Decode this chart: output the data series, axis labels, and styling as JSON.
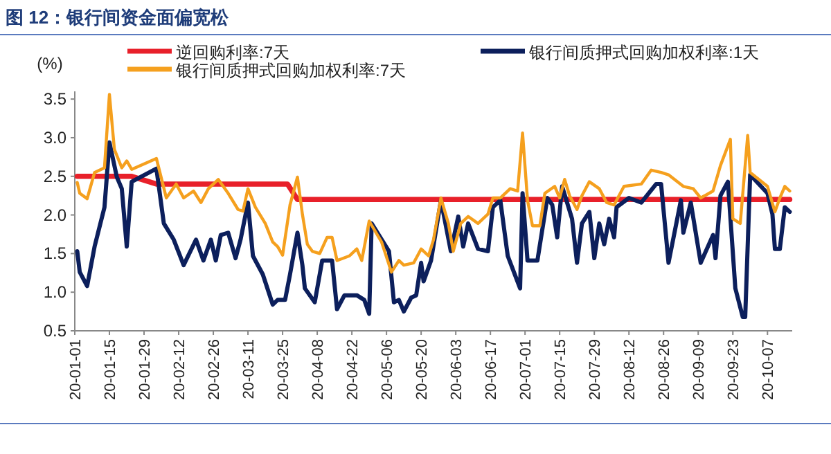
{
  "chart_data": {
    "type": "line",
    "title": "图 12：银行间资金面偏宽松",
    "ylabel": "(%)",
    "xlim": [
      "--01-01",
      "--10-17"
    ],
    "ylim": [
      0.5,
      3.6
    ],
    "xticks": [
      {
        "value": "--01-01",
        "label": "20-01-01"
      },
      {
        "value": "--01-15",
        "label": "20-01-15"
      },
      {
        "value": "--01-29",
        "label": "20-01-29"
      },
      {
        "value": "--02-12",
        "label": "20-02-12"
      },
      {
        "value": "--02-26",
        "label": "20-02-26"
      },
      {
        "value": "--03-11",
        "label": "20-03-11"
      },
      {
        "value": "--03-25",
        "label": "20-03-25"
      },
      {
        "value": "--04-08",
        "label": "20-04-08"
      },
      {
        "value": "--04-22",
        "label": "20-04-22"
      },
      {
        "value": "--05-06",
        "label": "20-05-06"
      },
      {
        "value": "--05-20",
        "label": "20-05-20"
      },
      {
        "value": "--06-03",
        "label": "20-06-03"
      },
      {
        "value": "--06-17",
        "label": "20-06-17"
      },
      {
        "value": "--07-01",
        "label": "20-07-01"
      },
      {
        "value": "--07-15",
        "label": "20-07-15"
      },
      {
        "value": "--07-29",
        "label": "20-07-29"
      },
      {
        "value": "--08-12",
        "label": "20-08-12"
      },
      {
        "value": "--08-26",
        "label": "20-08-26"
      },
      {
        "value": "--09-09",
        "label": "20-09-09"
      },
      {
        "value": "--09-23",
        "label": "20-09-23"
      },
      {
        "value": "--10-07",
        "label": "20-10-07"
      }
    ],
    "yticks": [
      {
        "value": 0.5,
        "label": "0.5"
      },
      {
        "value": 1.0,
        "label": "1.0"
      },
      {
        "value": 1.5,
        "label": "1.5"
      },
      {
        "value": 2.0,
        "label": "2.0"
      },
      {
        "value": 2.5,
        "label": "2.5"
      },
      {
        "value": 3.0,
        "label": "3.0"
      },
      {
        "value": 3.5,
        "label": "3.5"
      }
    ],
    "legend": "top",
    "series": [
      {
        "name": "逆回购利率:7天",
        "color": "#e8202a",
        "x": [
          "--01-02",
          "--01-24",
          "--02-03",
          "--03-27",
          "--03-31",
          "--10-16"
        ],
        "values": [
          2.5,
          2.5,
          2.4,
          2.4,
          2.2,
          2.2
        ]
      },
      {
        "name": "银行间质押式回购加权利率:1天",
        "color": "#0c1f5c",
        "x": [
          "--01-02",
          "--01-03",
          "--01-06",
          "--01-09",
          "--01-13",
          "--01-15",
          "--01-18",
          "--01-20",
          "--01-22",
          "--01-24",
          "--02-03",
          "--02-06",
          "--02-10",
          "--02-14",
          "--02-19",
          "--02-22",
          "--02-25",
          "--02-27",
          "--02-29",
          "--03-03",
          "--03-06",
          "--03-08",
          "--03-11",
          "--03-13",
          "--03-17",
          "--03-21",
          "--03-23",
          "--03-26",
          "--03-28",
          "--03-31",
          "--04-02",
          "--04-03",
          "--04-07",
          "--04-10",
          "--04-14",
          "--04-16",
          "--04-19",
          "--04-24",
          "--04-27",
          "--04-29",
          "--04-30",
          "--05-07",
          "--05-09",
          "--05-11",
          "--05-13",
          "--05-16",
          "--05-18",
          "--05-20",
          "--05-21",
          "--05-24",
          "--05-28",
          "--06-01",
          "--06-04",
          "--06-06",
          "--06-08",
          "--06-12",
          "--06-16",
          "--06-18",
          "--06-21",
          "--06-24",
          "--06-29",
          "--06-30",
          "--07-02",
          "--07-06",
          "--07-10",
          "--07-12",
          "--07-14",
          "--07-16",
          "--07-20",
          "--07-22",
          "--07-24",
          "--07-27",
          "--07-29",
          "--07-31",
          "--08-02",
          "--08-04",
          "--08-06",
          "--08-07",
          "--08-12",
          "--08-17",
          "--08-23",
          "--08-25",
          "--08-28",
          "--09-02",
          "--09-03",
          "--09-06",
          "--09-10",
          "--09-15",
          "--09-16",
          "--09-18",
          "--09-21",
          "--09-24",
          "--09-27",
          "--09-28",
          "--09-30",
          "--10-07",
          "--10-09",
          "--10-10",
          "--10-12",
          "--10-14",
          "--10-16"
        ],
        "values": [
          1.53,
          1.26,
          1.08,
          1.59,
          2.1,
          2.94,
          2.49,
          2.34,
          1.59,
          2.43,
          2.6,
          1.89,
          1.68,
          1.35,
          1.68,
          1.41,
          1.68,
          1.41,
          1.74,
          1.77,
          1.44,
          1.68,
          2.16,
          1.47,
          1.23,
          0.84,
          0.9,
          0.9,
          1.23,
          1.77,
          1.35,
          1.05,
          0.87,
          1.41,
          1.41,
          0.78,
          0.96,
          0.96,
          0.9,
          0.72,
          1.89,
          1.53,
          0.87,
          0.9,
          0.75,
          0.93,
          0.96,
          1.38,
          1.14,
          1.41,
          2.19,
          1.53,
          1.98,
          1.59,
          1.89,
          1.56,
          1.53,
          2.1,
          2.19,
          1.47,
          1.05,
          2.28,
          1.41,
          1.41,
          2.22,
          2.13,
          1.71,
          2.37,
          1.95,
          1.38,
          1.89,
          2.04,
          1.44,
          1.89,
          1.62,
          1.95,
          1.71,
          2.1,
          2.22,
          2.16,
          2.4,
          2.4,
          1.38,
          2.19,
          1.77,
          2.16,
          1.38,
          1.74,
          1.44,
          2.25,
          2.43,
          1.05,
          0.68,
          0.68,
          2.52,
          2.28,
          2.01,
          1.56,
          1.56,
          2.1,
          2.04
        ]
      },
      {
        "name": "银行间质押式回购加权利率:7天",
        "color": "#f5a01e",
        "x": [
          "--01-02",
          "--01-03",
          "--01-06",
          "--01-09",
          "--01-13",
          "--01-15",
          "--01-17",
          "--01-20",
          "--01-22",
          "--01-24",
          "--02-03",
          "--02-07",
          "--02-11",
          "--02-14",
          "--02-18",
          "--02-21",
          "--02-24",
          "--02-28",
          "--03-03",
          "--03-07",
          "--03-09",
          "--03-11",
          "--03-14",
          "--03-18",
          "--03-21",
          "--03-23",
          "--03-25",
          "--03-28",
          "--03-31",
          "--04-02",
          "--04-04",
          "--04-06",
          "--04-09",
          "--04-12",
          "--04-14",
          "--04-16",
          "--04-21",
          "--04-24",
          "--04-26",
          "--04-29",
          "--05-04",
          "--05-08",
          "--05-11",
          "--05-13",
          "--05-17",
          "--05-20",
          "--05-23",
          "--05-25",
          "--05-28",
          "--05-31",
          "--06-02",
          "--06-05",
          "--06-08",
          "--06-12",
          "--06-16",
          "--06-18",
          "--06-21",
          "--06-25",
          "--06-28",
          "--06-30",
          "--07-02",
          "--07-04",
          "--07-07",
          "--07-09",
          "--07-13",
          "--07-15",
          "--07-17",
          "--07-19",
          "--07-22",
          "--07-24",
          "--07-27",
          "--07-31",
          "--08-03",
          "--08-06",
          "--08-10",
          "--08-17",
          "--08-21",
          "--08-25",
          "--08-28",
          "--09-03",
          "--09-07",
          "--09-10",
          "--09-15",
          "--09-18",
          "--09-22",
          "--09-23",
          "--09-26",
          "--09-29",
          "--09-30",
          "--10-07",
          "--10-10",
          "--10-12",
          "--10-14",
          "--10-16"
        ],
        "values": [
          2.42,
          2.28,
          2.21,
          2.55,
          2.61,
          3.56,
          2.85,
          2.61,
          2.7,
          2.59,
          2.73,
          2.22,
          2.4,
          2.22,
          2.31,
          2.16,
          2.34,
          2.46,
          2.28,
          2.07,
          2.05,
          2.34,
          2.1,
          1.89,
          1.65,
          1.59,
          1.48,
          2.13,
          2.49,
          2.01,
          1.62,
          1.53,
          1.5,
          1.71,
          1.71,
          1.41,
          1.47,
          1.56,
          1.41,
          1.92,
          1.65,
          1.26,
          1.41,
          1.35,
          1.38,
          1.56,
          1.47,
          1.68,
          2.22,
          1.89,
          1.53,
          1.89,
          1.98,
          1.89,
          2.01,
          2.22,
          2.22,
          2.34,
          2.31,
          3.06,
          2.19,
          1.86,
          1.86,
          2.28,
          2.37,
          2.22,
          2.46,
          2.25,
          2.07,
          2.25,
          2.43,
          2.34,
          2.16,
          2.13,
          2.37,
          2.4,
          2.58,
          2.55,
          2.52,
          2.37,
          2.34,
          2.22,
          2.31,
          2.64,
          2.98,
          1.95,
          1.89,
          3.03,
          2.55,
          2.37,
          2.04,
          2.22,
          2.37,
          2.31
        ]
      }
    ]
  }
}
